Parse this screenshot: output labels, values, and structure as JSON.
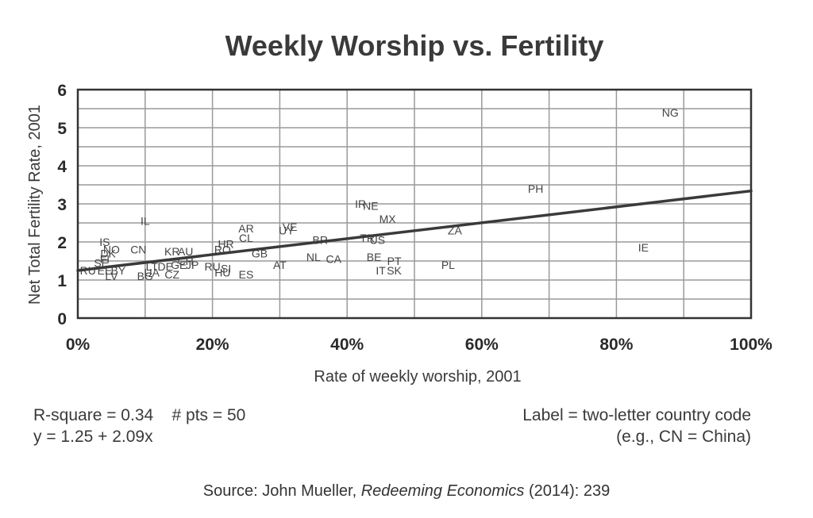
{
  "chart_data": {
    "type": "scatter",
    "title": "Weekly Worship vs. Fertility",
    "xlabel": "Rate of weekly worship, 2001",
    "ylabel": "Net Total Fertility Rate, 2001",
    "xlim": [
      0,
      100
    ],
    "ylim": [
      0,
      6
    ],
    "x_ticks": [
      "0%",
      "20%",
      "40%",
      "60%",
      "80%",
      "100%"
    ],
    "y_ticks": [
      "0",
      "1",
      "2",
      "3",
      "4",
      "5",
      "6"
    ],
    "grid": true,
    "points": [
      {
        "label": "NG",
        "x": 88,
        "y": 5.4
      },
      {
        "label": "PH",
        "x": 68,
        "y": 3.4
      },
      {
        "label": "IR",
        "x": 42,
        "y": 3.0
      },
      {
        "label": "NE",
        "x": 43.5,
        "y": 2.95
      },
      {
        "label": "MX",
        "x": 46,
        "y": 2.6
      },
      {
        "label": "ZA",
        "x": 56,
        "y": 2.3
      },
      {
        "label": "IE",
        "x": 84,
        "y": 1.85
      },
      {
        "label": "IL",
        "x": 10,
        "y": 2.55
      },
      {
        "label": "AR",
        "x": 25,
        "y": 2.35
      },
      {
        "label": "CL",
        "x": 25,
        "y": 2.1
      },
      {
        "label": "VE",
        "x": 31.5,
        "y": 2.4
      },
      {
        "label": "UY",
        "x": 31,
        "y": 2.3
      },
      {
        "label": "BR",
        "x": 36,
        "y": 2.05
      },
      {
        "label": "TR",
        "x": 43,
        "y": 2.1
      },
      {
        "label": "US",
        "x": 44.5,
        "y": 2.05
      },
      {
        "label": "HR",
        "x": 22,
        "y": 1.95
      },
      {
        "label": "RO",
        "x": 21.5,
        "y": 1.8
      },
      {
        "label": "GB",
        "x": 27,
        "y": 1.7
      },
      {
        "label": "NL",
        "x": 35,
        "y": 1.6
      },
      {
        "label": "CA",
        "x": 38,
        "y": 1.55
      },
      {
        "label": "BE",
        "x": 44,
        "y": 1.6
      },
      {
        "label": "PT",
        "x": 47,
        "y": 1.5
      },
      {
        "label": "PL",
        "x": 55,
        "y": 1.4
      },
      {
        "label": "AT",
        "x": 30,
        "y": 1.4
      },
      {
        "label": "IT",
        "x": 45,
        "y": 1.25
      },
      {
        "label": "SK",
        "x": 47,
        "y": 1.25
      },
      {
        "label": "SI",
        "x": 22,
        "y": 1.3
      },
      {
        "label": "RU",
        "x": 20,
        "y": 1.35
      },
      {
        "label": "HU",
        "x": 21.5,
        "y": 1.2
      },
      {
        "label": "ES",
        "x": 25,
        "y": 1.15
      },
      {
        "label": "IS",
        "x": 4,
        "y": 2.0
      },
      {
        "label": "NO",
        "x": 5,
        "y": 1.8
      },
      {
        "label": "DK",
        "x": 4.5,
        "y": 1.7
      },
      {
        "label": "FI",
        "x": 4,
        "y": 1.55
      },
      {
        "label": "SE",
        "x": 3.5,
        "y": 1.45
      },
      {
        "label": "CN",
        "x": 9,
        "y": 1.8
      },
      {
        "label": "KR",
        "x": 14,
        "y": 1.75
      },
      {
        "label": "AU",
        "x": 16,
        "y": 1.75
      },
      {
        "label": "CH",
        "x": 16,
        "y": 1.5
      },
      {
        "label": "GE",
        "x": 15,
        "y": 1.4
      },
      {
        "label": "LT",
        "x": 11,
        "y": 1.35
      },
      {
        "label": "DE",
        "x": 13,
        "y": 1.35
      },
      {
        "label": "JP",
        "x": 17,
        "y": 1.4
      },
      {
        "label": "RU",
        "x": 1.5,
        "y": 1.25
      },
      {
        "label": "EE",
        "x": 4,
        "y": 1.25
      },
      {
        "label": "BY",
        "x": 6,
        "y": 1.25
      },
      {
        "label": "LV",
        "x": 5,
        "y": 1.1
      },
      {
        "label": "UA",
        "x": 11,
        "y": 1.2
      },
      {
        "label": "BG",
        "x": 10,
        "y": 1.1
      },
      {
        "label": "CZ",
        "x": 14,
        "y": 1.15
      }
    ],
    "trendline": {
      "intercept": 1.25,
      "slope": 2.09
    }
  },
  "notes": {
    "r_square": "R-square = 0.34",
    "num_pts": "# pts = 50",
    "equation": "y = 1.25 + 2.09x",
    "label_note": "Label = two-letter country code",
    "example": "(e.g.,  CN = China)"
  },
  "source": {
    "prefix": "Source: John Mueller,",
    "book": "Redeeming Economics",
    "suffix": "(2014): 239"
  },
  "colors": {
    "trendline": "#3a3a3a",
    "frame": "#333333",
    "grid": "#9a9a9a"
  }
}
